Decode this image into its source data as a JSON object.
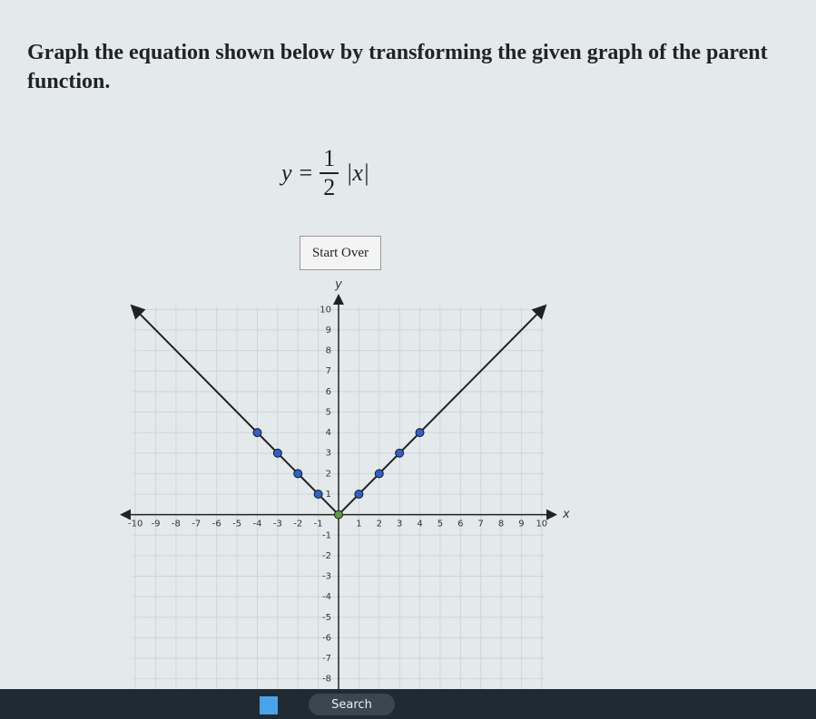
{
  "question": {
    "text": "Graph the equation shown below by transforming the given graph of the parent function."
  },
  "equation": {
    "lhs": "y",
    "relation": "=",
    "numerator": "1",
    "denominator": "2",
    "rhs": "|x|"
  },
  "button": {
    "label": "Start Over"
  },
  "graph": {
    "type": "line",
    "x_label": "x",
    "y_label": "y",
    "xlim": [
      -10.5,
      10.5
    ],
    "ylim": [
      -8.5,
      10.5
    ],
    "xticks": [
      -10,
      -9,
      -8,
      -7,
      -6,
      -5,
      -4,
      -3,
      -2,
      -1,
      1,
      2,
      3,
      4,
      5,
      6,
      7,
      8,
      9,
      10
    ],
    "yticks": [
      -8,
      -7,
      -6,
      -5,
      -4,
      -3,
      -2,
      -1,
      1,
      2,
      3,
      4,
      5,
      6,
      7,
      8,
      9,
      10
    ],
    "grid": true,
    "line": {
      "x": [
        -10,
        0,
        10
      ],
      "y": [
        10,
        0,
        10
      ],
      "color": "#222222"
    },
    "points": {
      "x": [
        -4,
        -3,
        -2,
        -1,
        1,
        2,
        3,
        4
      ],
      "y": [
        4,
        3,
        2,
        1,
        1,
        2,
        3,
        4
      ],
      "color": "#2f5fd0"
    },
    "vertex": {
      "x": [
        0
      ],
      "y": [
        0
      ],
      "color": "#5a9e3a"
    }
  },
  "taskbar": {
    "search": "Search"
  }
}
